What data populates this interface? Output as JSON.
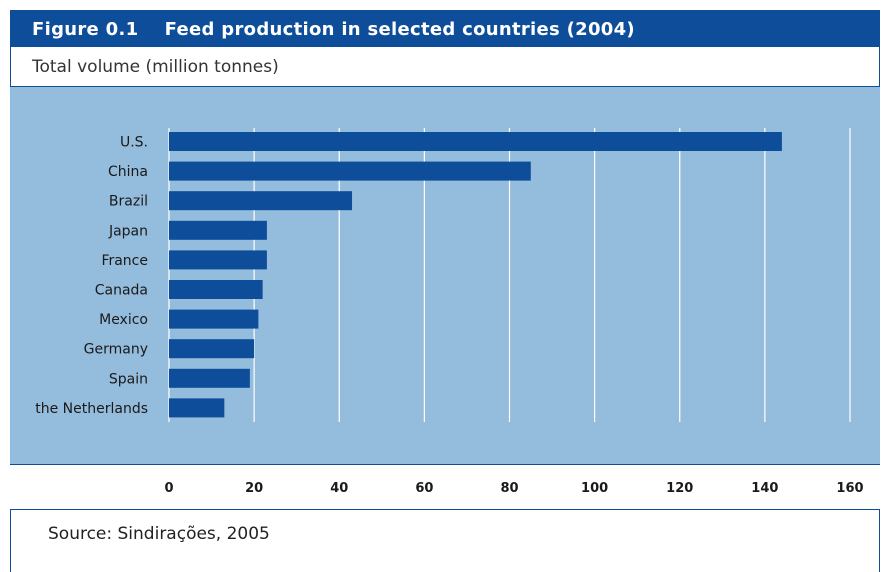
{
  "header": {
    "title": "Figure 0.1    Feed production in selected countries (2004)"
  },
  "subtitle": "Total volume (million tonnes)",
  "source": "Source: Sindirações, 2005",
  "colors": {
    "bar": "#0d4d9a",
    "panel": "#94bcdc",
    "grid": "#ffffff",
    "header": "#0d4d9a"
  },
  "chart_data": {
    "type": "bar",
    "orientation": "horizontal",
    "title": "Feed production in selected countries (2004)",
    "ylabel": "Total volume (million tonnes)",
    "categories": [
      "U.S.",
      "China",
      "Brazil",
      "Japan",
      "France",
      "Canada",
      "Mexico",
      "Germany",
      "Spain",
      "the Netherlands"
    ],
    "values": [
      144,
      85,
      43,
      23,
      23,
      22,
      21,
      20,
      19,
      13
    ],
    "xlim": [
      0,
      160
    ],
    "xticks": [
      0,
      20,
      40,
      60,
      80,
      100,
      120,
      140,
      160
    ],
    "grid": true,
    "legend": "none"
  }
}
